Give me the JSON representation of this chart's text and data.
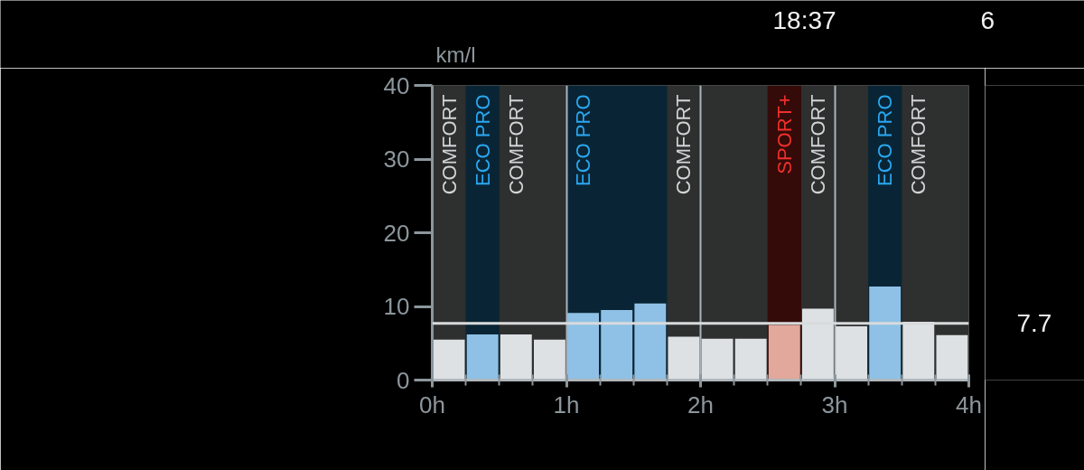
{
  "chart_data": {
    "type": "bar",
    "ylabel": "km/l",
    "x": [
      0.125,
      0.375,
      0.625,
      0.875,
      1.125,
      1.375,
      1.625,
      1.875,
      2.125,
      2.375,
      2.625,
      2.875,
      3.125,
      3.375,
      3.625,
      3.875
    ],
    "values": [
      5.5,
      6.2,
      6.2,
      5.5,
      9.1,
      9.5,
      10.4,
      5.9,
      5.6,
      5.6,
      7.5,
      9.7,
      7.3,
      12.7,
      7.9,
      6.1
    ],
    "colors": [
      "#dde1e4",
      "#8fc1e6",
      "#dde1e4",
      "#dde1e4",
      "#8fc1e6",
      "#8fc1e6",
      "#8fc1e6",
      "#dde1e4",
      "#dde1e4",
      "#dde1e4",
      "#e2a89c",
      "#dde1e4",
      "#dde1e4",
      "#8fc1e6",
      "#dde1e4",
      "#dde1e4"
    ],
    "xlim": [
      0,
      4
    ],
    "xticks": [
      {
        "value": 0,
        "label": "0h"
      },
      {
        "value": 1,
        "label": "1h"
      },
      {
        "value": 2,
        "label": "2h"
      },
      {
        "value": 3,
        "label": "3h"
      },
      {
        "value": 4,
        "label": "4h"
      }
    ],
    "ylim": [
      0,
      40
    ],
    "yticks": [
      0,
      10,
      20,
      30,
      40
    ],
    "grid": "x",
    "bands": [
      {
        "axis": "x",
        "from": 0,
        "to": 0.25,
        "label": "COMFORT",
        "color": "#d0d4d6"
      },
      {
        "axis": "x",
        "from": 0.25,
        "to": 0.5,
        "label": "ECO PRO",
        "color": "#2aa8f2"
      },
      {
        "axis": "x",
        "from": 0.5,
        "to": 1.0,
        "label": "COMFORT",
        "color": "#d0d4d6"
      },
      {
        "axis": "x",
        "from": 1.0,
        "to": 1.75,
        "label": "ECO PRO",
        "color": "#2aa8f2"
      },
      {
        "axis": "x",
        "from": 1.75,
        "to": 2.5,
        "label": "COMFORT",
        "color": "#d0d4d6"
      },
      {
        "axis": "x",
        "from": 2.5,
        "to": 2.75,
        "label": "SPORT+",
        "color": "#f0302a"
      },
      {
        "axis": "x",
        "from": 2.75,
        "to": 3.25,
        "label": "COMFORT",
        "color": "#d0d4d6"
      },
      {
        "axis": "x",
        "from": 3.25,
        "to": 3.5,
        "label": "ECO PRO",
        "color": "#2aa8f2"
      },
      {
        "axis": "x",
        "from": 3.5,
        "to": 4.0,
        "label": "COMFORT",
        "color": "#d0d4d6"
      }
    ],
    "ref_lines": [
      {
        "axis": "y",
        "value": 7.7,
        "label": "7.7",
        "color": "#d8dadc"
      }
    ],
    "annotations": [
      "18:37",
      "6"
    ]
  }
}
